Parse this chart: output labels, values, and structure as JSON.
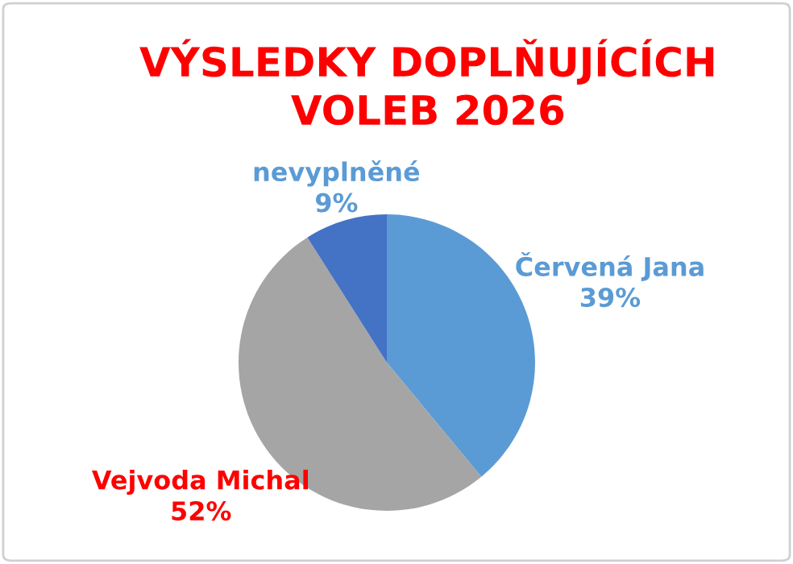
{
  "chart_data": {
    "type": "pie",
    "title": "VÝSLEDKY DOPLŇUJÍCÍCH\nVOLEB 2026",
    "categories": [
      "Červená Jana",
      "Vejvoda Michal",
      "nevyplněné"
    ],
    "values": [
      39,
      52,
      9
    ],
    "colors": [
      "#5b9bd5",
      "#a5a5a5",
      "#4472c4"
    ],
    "value_labels": [
      "39%",
      "52%",
      "9%"
    ]
  }
}
